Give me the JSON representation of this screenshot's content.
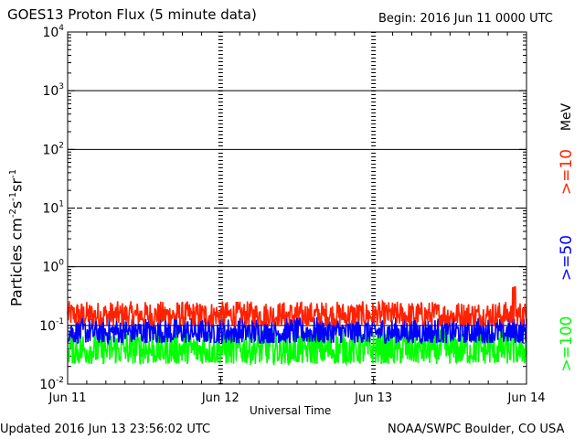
{
  "header": {
    "title": "GOES13 Proton Flux (5 minute data)",
    "begin": "Begin: 2016 Jun 11 0000 UTC"
  },
  "footer": {
    "updated": "Updated 2016 Jun 13 23:56:02 UTC",
    "credit": "NOAA/SWPC Boulder, CO USA"
  },
  "chart_data": {
    "type": "line",
    "title": "GOES13 Proton Flux (5 minute data)",
    "xlabel": "Universal Time",
    "ylabel_parts": {
      "base": "Particles cm",
      "exp1": "-2",
      "mid1": "s",
      "exp2": "-1",
      "mid2": "sr",
      "exp3": "-1"
    },
    "unit_label": "MeV",
    "y_scale": "log",
    "ylim": [
      0.01,
      10000
    ],
    "xlim": [
      0,
      3
    ],
    "x_ticks": [
      {
        "value": 0,
        "label": "Jun 11"
      },
      {
        "value": 1,
        "label": "Jun 12"
      },
      {
        "value": 2,
        "label": "Jun 13"
      },
      {
        "value": 3,
        "label": "Jun 14"
      }
    ],
    "y_ticks": [
      {
        "value": 0.01,
        "base": "10",
        "exp": "-2"
      },
      {
        "value": 0.1,
        "base": "10",
        "exp": "-1"
      },
      {
        "value": 1,
        "base": "10",
        "exp": "0"
      },
      {
        "value": 10,
        "base": "10",
        "exp": "1"
      },
      {
        "value": 100,
        "base": "10",
        "exp": "2"
      },
      {
        "value": 1000,
        "base": "10",
        "exp": "3"
      },
      {
        "value": 10000,
        "base": "10",
        "exp": "4"
      }
    ],
    "grid": {
      "solid_y": [
        0.1,
        1,
        100,
        1000
      ],
      "dashed_y": [
        10
      ],
      "dotted_x": [
        1,
        2
      ]
    },
    "series": [
      {
        "name": ">=10",
        "color": "#ff2200",
        "min": 0.1,
        "max": 0.26,
        "spike_max": 0.45
      },
      {
        "name": ">=50",
        "color": "#0000ff",
        "min": 0.05,
        "max": 0.14
      },
      {
        "name": ">=100",
        "color": "#00ff00",
        "min": 0.022,
        "max": 0.085
      }
    ],
    "legend_position": "right"
  }
}
